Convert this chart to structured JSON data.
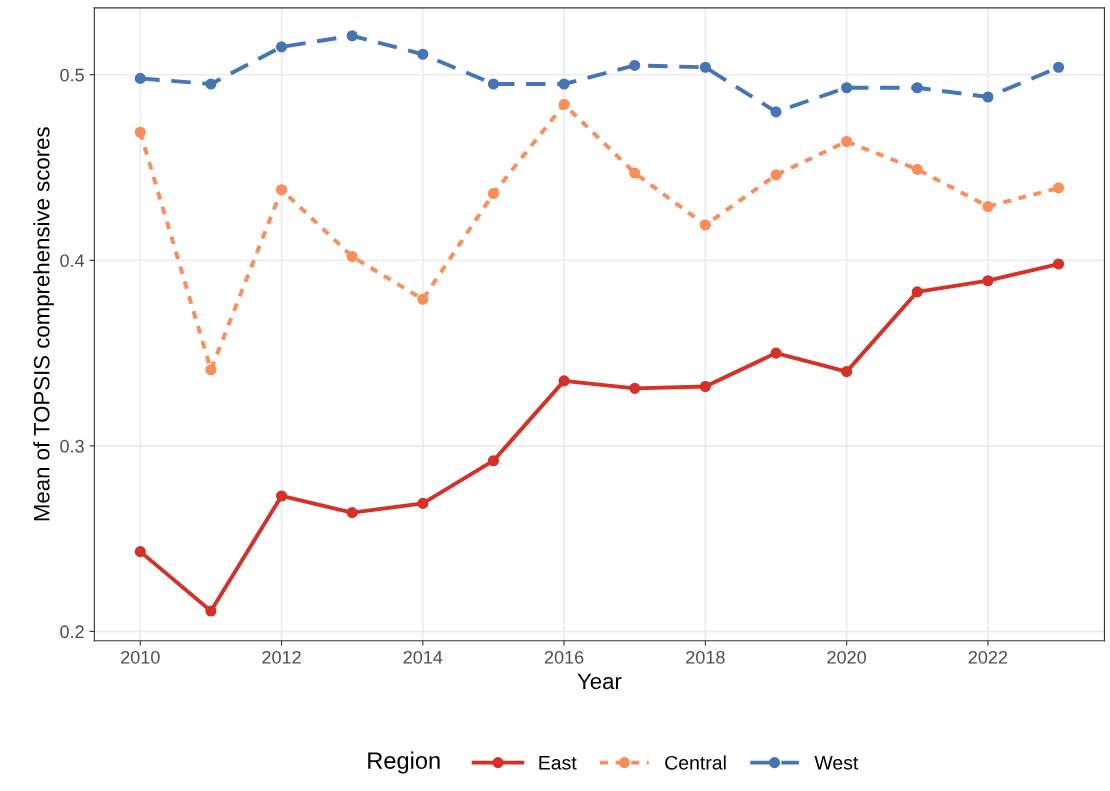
{
  "chart_data": {
    "type": "line",
    "xlabel": "Year",
    "ylabel": "Mean of TOPSIS comprehensive scores",
    "legend_title": "Region",
    "x": [
      2010,
      2011,
      2012,
      2013,
      2014,
      2015,
      2016,
      2017,
      2018,
      2019,
      2020,
      2021,
      2022,
      2023
    ],
    "series": [
      {
        "name": "East",
        "color": "#d73027",
        "line_style": "solid",
        "values": [
          0.243,
          0.211,
          0.273,
          0.264,
          0.269,
          0.292,
          0.335,
          0.331,
          0.332,
          0.35,
          0.34,
          0.383,
          0.389,
          0.398
        ]
      },
      {
        "name": "Central",
        "color": "#fc8d59",
        "line_style": "dotted",
        "values": [
          0.469,
          0.341,
          0.438,
          0.402,
          0.379,
          0.436,
          0.484,
          0.447,
          0.419,
          0.446,
          0.464,
          0.449,
          0.429,
          0.439
        ]
      },
      {
        "name": "West",
        "color": "#4575b4",
        "line_style": "dashed",
        "values": [
          0.498,
          0.495,
          0.515,
          0.521,
          0.511,
          0.495,
          0.495,
          0.505,
          0.504,
          0.48,
          0.493,
          0.493,
          0.488,
          0.504
        ]
      }
    ],
    "xlim": [
      2009.35,
      2023.65
    ],
    "xticks": [
      2010,
      2012,
      2014,
      2016,
      2018,
      2020,
      2022
    ],
    "ylim": [
      0.195,
      0.536
    ],
    "yticks": [
      0.2,
      0.3,
      0.4,
      0.5
    ],
    "grid": true,
    "legend": "bottom",
    "marker": "circle"
  }
}
